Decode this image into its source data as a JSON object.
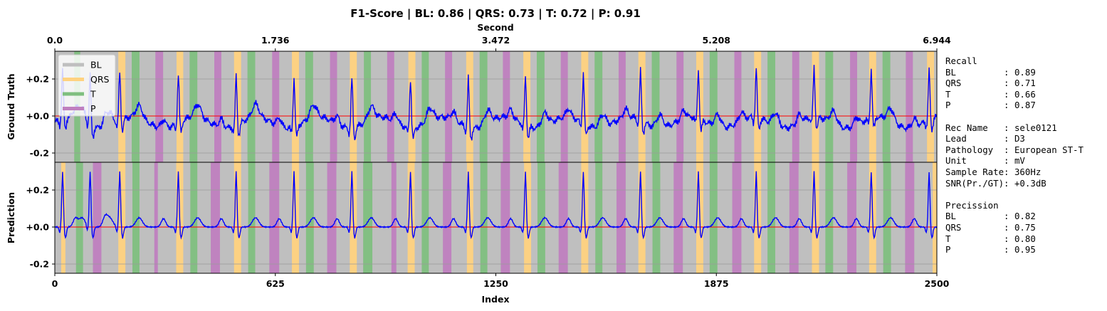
{
  "chart_data": {
    "type": "line",
    "title": "F1-Score | BL: 0.86 | QRS: 0.73 | T: 0.72 | P: 0.91",
    "top_axis": {
      "label": "Second",
      "ticks": [
        "0.0",
        "1.736",
        "3.472",
        "5.208",
        "6.944"
      ],
      "range": [
        0,
        6.944
      ]
    },
    "xlabel": "Index",
    "xlim": [
      0,
      2500
    ],
    "xticks": [
      0,
      625,
      1250,
      1875,
      2500
    ],
    "ylim": [
      -0.25,
      0.35
    ],
    "yticks": [
      -0.2,
      0.0,
      0.2
    ],
    "ytick_labels": [
      "-0.2",
      "+0.0",
      "+0.2"
    ],
    "grid": true,
    "legend": {
      "placement": "upper-left",
      "entries": [
        "BL",
        "QRS",
        "T",
        "P"
      ]
    },
    "colors": {
      "BL": "#bfbfbf",
      "QRS": "#ffd280",
      "T": "#7fbf7f",
      "P": "#bf7fbf",
      "signal": "#0000ff",
      "zero_line": "#ff0000"
    },
    "beat_times": [
      22,
      100,
      184,
      350,
      514,
      678,
      842,
      1008,
      1172,
      1334,
      1498,
      1660,
      1824,
      1988,
      2152,
      2314,
      2478
    ],
    "panels": [
      {
        "ylabel": "Ground Truth",
        "segments": [
          {
            "label": "T",
            "start": 55,
            "end": 72
          },
          {
            "label": "QRS",
            "start": 180,
            "end": 200
          },
          {
            "label": "T",
            "start": 218,
            "end": 240
          },
          {
            "label": "P",
            "start": 285,
            "end": 307
          },
          {
            "label": "QRS",
            "start": 345,
            "end": 364
          },
          {
            "label": "T",
            "start": 382,
            "end": 404
          },
          {
            "label": "P",
            "start": 452,
            "end": 472
          },
          {
            "label": "QRS",
            "start": 508,
            "end": 528
          },
          {
            "label": "T",
            "start": 546,
            "end": 568
          },
          {
            "label": "P",
            "start": 616,
            "end": 636
          },
          {
            "label": "QRS",
            "start": 672,
            "end": 692
          },
          {
            "label": "T",
            "start": 710,
            "end": 732
          },
          {
            "label": "P",
            "start": 780,
            "end": 800
          },
          {
            "label": "QRS",
            "start": 836,
            "end": 856
          },
          {
            "label": "T",
            "start": 876,
            "end": 896
          },
          {
            "label": "P",
            "start": 942,
            "end": 962
          },
          {
            "label": "QRS",
            "start": 1002,
            "end": 1022
          },
          {
            "label": "T",
            "start": 1040,
            "end": 1060
          },
          {
            "label": "P",
            "start": 1106,
            "end": 1126
          },
          {
            "label": "QRS",
            "start": 1166,
            "end": 1186
          },
          {
            "label": "T",
            "start": 1204,
            "end": 1226
          },
          {
            "label": "P",
            "start": 1270,
            "end": 1290
          },
          {
            "label": "QRS",
            "start": 1328,
            "end": 1348
          },
          {
            "label": "T",
            "start": 1366,
            "end": 1388
          },
          {
            "label": "P",
            "start": 1434,
            "end": 1454
          },
          {
            "label": "QRS",
            "start": 1492,
            "end": 1512
          },
          {
            "label": "T",
            "start": 1530,
            "end": 1552
          },
          {
            "label": "P",
            "start": 1598,
            "end": 1618
          },
          {
            "label": "QRS",
            "start": 1654,
            "end": 1674
          },
          {
            "label": "T",
            "start": 1692,
            "end": 1714
          },
          {
            "label": "P",
            "start": 1762,
            "end": 1782
          },
          {
            "label": "QRS",
            "start": 1818,
            "end": 1838
          },
          {
            "label": "T",
            "start": 1856,
            "end": 1878
          },
          {
            "label": "P",
            "start": 1926,
            "end": 1946
          },
          {
            "label": "QRS",
            "start": 1982,
            "end": 2002
          },
          {
            "label": "T",
            "start": 2020,
            "end": 2042
          },
          {
            "label": "P",
            "start": 2090,
            "end": 2110
          },
          {
            "label": "QRS",
            "start": 2146,
            "end": 2166
          },
          {
            "label": "T",
            "start": 2184,
            "end": 2206
          },
          {
            "label": "P",
            "start": 2254,
            "end": 2274
          },
          {
            "label": "QRS",
            "start": 2308,
            "end": 2328
          },
          {
            "label": "T",
            "start": 2346,
            "end": 2368
          },
          {
            "label": "P",
            "start": 2412,
            "end": 2432
          },
          {
            "label": "QRS",
            "start": 2472,
            "end": 2492
          }
        ]
      },
      {
        "ylabel": "Prediction",
        "segments": [
          {
            "label": "QRS",
            "start": 18,
            "end": 30
          },
          {
            "label": "T",
            "start": 60,
            "end": 80
          },
          {
            "label": "P",
            "start": 108,
            "end": 132
          },
          {
            "label": "QRS",
            "start": 180,
            "end": 200
          },
          {
            "label": "T",
            "start": 220,
            "end": 240
          },
          {
            "label": "P",
            "start": 282,
            "end": 292
          },
          {
            "label": "QRS",
            "start": 344,
            "end": 364
          },
          {
            "label": "T",
            "start": 384,
            "end": 404
          },
          {
            "label": "P",
            "start": 442,
            "end": 468
          },
          {
            "label": "QRS",
            "start": 508,
            "end": 528
          },
          {
            "label": "T",
            "start": 548,
            "end": 568
          },
          {
            "label": "P",
            "start": 608,
            "end": 636
          },
          {
            "label": "QRS",
            "start": 672,
            "end": 692
          },
          {
            "label": "T",
            "start": 712,
            "end": 734
          },
          {
            "label": "P",
            "start": 772,
            "end": 798
          },
          {
            "label": "QRS",
            "start": 836,
            "end": 856
          },
          {
            "label": "T",
            "start": 874,
            "end": 900
          },
          {
            "label": "P",
            "start": 954,
            "end": 968
          },
          {
            "label": "QRS",
            "start": 1000,
            "end": 1020
          },
          {
            "label": "T",
            "start": 1040,
            "end": 1060
          },
          {
            "label": "P",
            "start": 1100,
            "end": 1124
          },
          {
            "label": "QRS",
            "start": 1168,
            "end": 1186
          },
          {
            "label": "T",
            "start": 1206,
            "end": 1226
          },
          {
            "label": "P",
            "start": 1264,
            "end": 1290
          },
          {
            "label": "QRS",
            "start": 1330,
            "end": 1350
          },
          {
            "label": "T",
            "start": 1368,
            "end": 1390
          },
          {
            "label": "P",
            "start": 1428,
            "end": 1454
          },
          {
            "label": "QRS",
            "start": 1492,
            "end": 1512
          },
          {
            "label": "T",
            "start": 1532,
            "end": 1552
          },
          {
            "label": "P",
            "start": 1592,
            "end": 1618
          },
          {
            "label": "QRS",
            "start": 1654,
            "end": 1674
          },
          {
            "label": "T",
            "start": 1694,
            "end": 1716
          },
          {
            "label": "P",
            "start": 1754,
            "end": 1780
          },
          {
            "label": "QRS",
            "start": 1818,
            "end": 1838
          },
          {
            "label": "T",
            "start": 1856,
            "end": 1878
          },
          {
            "label": "P",
            "start": 1920,
            "end": 1946
          },
          {
            "label": "QRS",
            "start": 1982,
            "end": 2002
          },
          {
            "label": "T",
            "start": 2020,
            "end": 2042
          },
          {
            "label": "P",
            "start": 2082,
            "end": 2108
          },
          {
            "label": "QRS",
            "start": 2146,
            "end": 2166
          },
          {
            "label": "T",
            "start": 2184,
            "end": 2206
          },
          {
            "label": "P",
            "start": 2246,
            "end": 2272
          },
          {
            "label": "QRS",
            "start": 2308,
            "end": 2328
          },
          {
            "label": "T",
            "start": 2348,
            "end": 2370
          },
          {
            "label": "P",
            "start": 2410,
            "end": 2436
          },
          {
            "label": "QRS",
            "start": 2488,
            "end": 2500
          }
        ]
      }
    ]
  },
  "side_text": [
    "Recall",
    "BL         : 0.89",
    "QRS        : 0.71",
    "T          : 0.66",
    "P          : 0.87",
    "",
    "Rec Name   : sele0121",
    "Lead       : D3",
    "Pathology  : European ST-T",
    "Unit       : mV",
    "Sample Rate: 360Hz",
    "SNR(Pr./GT): +0.3dB",
    "",
    "Precission",
    "BL         : 0.82",
    "QRS        : 0.75",
    "T          : 0.80",
    "P          : 0.95"
  ]
}
